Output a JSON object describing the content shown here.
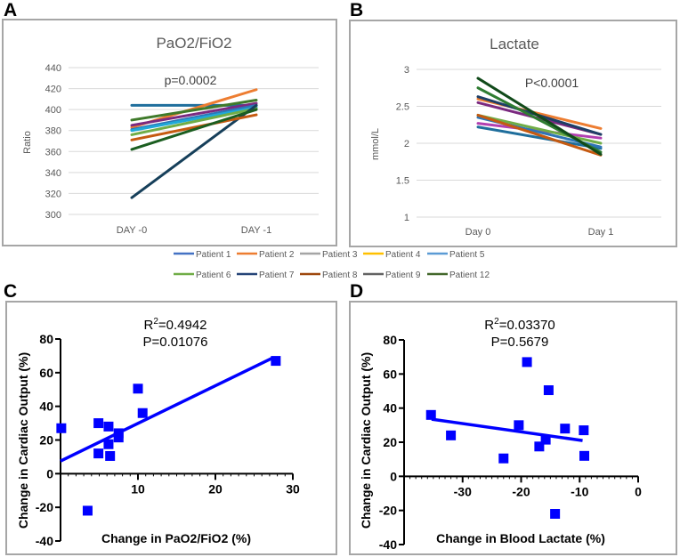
{
  "chart_data": [
    {
      "panel": "A",
      "type": "line",
      "title": "PaO2/FiO2",
      "ylabel": "Ratio",
      "xlabel": "",
      "categories": [
        "DAY -0",
        "DAY -1"
      ],
      "ylim": [
        300,
        440
      ],
      "yticks": [
        300,
        320,
        340,
        360,
        380,
        400,
        420,
        440
      ],
      "grid": true,
      "annotation": "p=0.0002",
      "series": [
        {
          "name": "Patient 1",
          "color": "#1f6e9c",
          "values": [
            404,
            404
          ]
        },
        {
          "name": "Patient 2",
          "color": "#ed7d31",
          "values": [
            383,
            419
          ]
        },
        {
          "name": "Patient 3",
          "color": "#7b2a80",
          "values": [
            385,
            406
          ]
        },
        {
          "name": "Patient 4",
          "color": "#2e75b6",
          "values": [
            381,
            404
          ]
        },
        {
          "name": "Patient 5",
          "color": "#1fa8d8",
          "values": [
            380,
            402
          ]
        },
        {
          "name": "Patient 6",
          "color": "#70ad47",
          "values": [
            376,
            401
          ]
        },
        {
          "name": "Patient 7",
          "color": "#163f5a",
          "values": [
            316,
            404
          ]
        },
        {
          "name": "Patient 8",
          "color": "#c55a11",
          "values": [
            371,
            395
          ]
        },
        {
          "name": "Patient 9",
          "color": "#1b5e20",
          "values": [
            362,
            400
          ]
        },
        {
          "name": "Patient 12",
          "color": "#3f7a2a",
          "values": [
            390,
            409
          ]
        }
      ]
    },
    {
      "panel": "B",
      "type": "line",
      "title": "Lactate",
      "ylabel": "mmol/L",
      "xlabel": "",
      "categories": [
        "Day 0",
        "Day 1"
      ],
      "ylim": [
        1,
        3
      ],
      "yticks": [
        1,
        1.5,
        2,
        2.5,
        3
      ],
      "grid": true,
      "annotation": "P<0.0001",
      "series": [
        {
          "name": "Patient 1",
          "color": "#1f6e9c",
          "values": [
            2.22,
            1.93
          ]
        },
        {
          "name": "Patient 2",
          "color": "#ed7d31",
          "values": [
            2.6,
            2.2
          ]
        },
        {
          "name": "Patient 3",
          "color": "#b23fb0",
          "values": [
            2.27,
            2.07
          ]
        },
        {
          "name": "Patient 4",
          "color": "#2e75b6",
          "values": [
            2.35,
            1.95
          ]
        },
        {
          "name": "Patient 5",
          "color": "#7b2a80",
          "values": [
            2.55,
            2.12
          ]
        },
        {
          "name": "Patient 6",
          "color": "#70ad47",
          "values": [
            2.38,
            2.0
          ]
        },
        {
          "name": "Patient 7",
          "color": "#1e3f66",
          "values": [
            2.63,
            2.12
          ]
        },
        {
          "name": "Patient 8",
          "color": "#c55a11",
          "values": [
            2.38,
            1.84
          ]
        },
        {
          "name": "Patient 9",
          "color": "#2f7d32",
          "values": [
            2.75,
            1.88
          ]
        },
        {
          "name": "Patient 12",
          "color": "#114a1a",
          "values": [
            2.88,
            1.85
          ]
        }
      ]
    },
    {
      "panel": "C",
      "type": "scatter",
      "xlabel": "Change in PaO2/FiO2 (%)",
      "ylabel": "Change in Cardiac Output (%)",
      "xlim": [
        0,
        30
      ],
      "ylim": [
        -40,
        80
      ],
      "xticks": [
        10,
        20,
        30
      ],
      "yticks": [
        -40,
        -20,
        0,
        20,
        40,
        60,
        80
      ],
      "annotation_r2_prefix": "R",
      "annotation_r2_sup": "2",
      "annotation_r2_value": "=0.4942",
      "annotation_p": "P=0.01076",
      "color": "#0000ff",
      "points": [
        [
          0.1,
          27
        ],
        [
          3.5,
          -22
        ],
        [
          4.9,
          30
        ],
        [
          4.9,
          12
        ],
        [
          6.2,
          28
        ],
        [
          6.2,
          17.5
        ],
        [
          6.4,
          10.5
        ],
        [
          7.5,
          24
        ],
        [
          7.5,
          21.5
        ],
        [
          10,
          50.5
        ],
        [
          10.6,
          36
        ],
        [
          27.8,
          67
        ]
      ],
      "fit": [
        [
          0,
          7.5
        ],
        [
          27.5,
          69
        ]
      ]
    },
    {
      "panel": "D",
      "type": "scatter",
      "xlabel": "Change in Blood Lactate (%)",
      "ylabel": "Change in Cardiac Output (%)",
      "xlim": [
        -40,
        0
      ],
      "ylim": [
        -40,
        80
      ],
      "xticks": [
        -30,
        -20,
        -10,
        0
      ],
      "yticks": [
        -40,
        -20,
        0,
        20,
        40,
        60,
        80
      ],
      "annotation_r2_prefix": "R",
      "annotation_r2_sup": "2",
      "annotation_r2_value": "=0.03370",
      "annotation_p": "P=0.5679",
      "color": "#0000ff",
      "points": [
        [
          -35.4,
          36
        ],
        [
          -32,
          24
        ],
        [
          -23,
          10.5
        ],
        [
          -20.4,
          30
        ],
        [
          -19,
          67
        ],
        [
          -16.9,
          17.5
        ],
        [
          -15.8,
          21.5
        ],
        [
          -15.3,
          50.5
        ],
        [
          -14.2,
          -22
        ],
        [
          -12.5,
          28
        ],
        [
          -9.3,
          27
        ],
        [
          -9.2,
          12
        ]
      ],
      "fit": [
        [
          -35.3,
          33.5
        ],
        [
          -9.5,
          21
        ]
      ]
    }
  ],
  "legend": [
    {
      "label": "Patient 1",
      "color": "#4472c4"
    },
    {
      "label": "Patient 2",
      "color": "#ed7d31"
    },
    {
      "label": "Patient 3",
      "color": "#a5a5a5"
    },
    {
      "label": "Patient 4",
      "color": "#ffc000"
    },
    {
      "label": "Patient 5",
      "color": "#5b9bd5"
    },
    {
      "label": "Patient 6",
      "color": "#70ad47"
    },
    {
      "label": "Patient 7",
      "color": "#264478"
    },
    {
      "label": "Patient 8",
      "color": "#9e480e"
    },
    {
      "label": "Patient 9",
      "color": "#636363"
    },
    {
      "label": "Patient 12",
      "color": "#43682b"
    }
  ],
  "panel_letters": [
    "A",
    "B",
    "C",
    "D"
  ]
}
